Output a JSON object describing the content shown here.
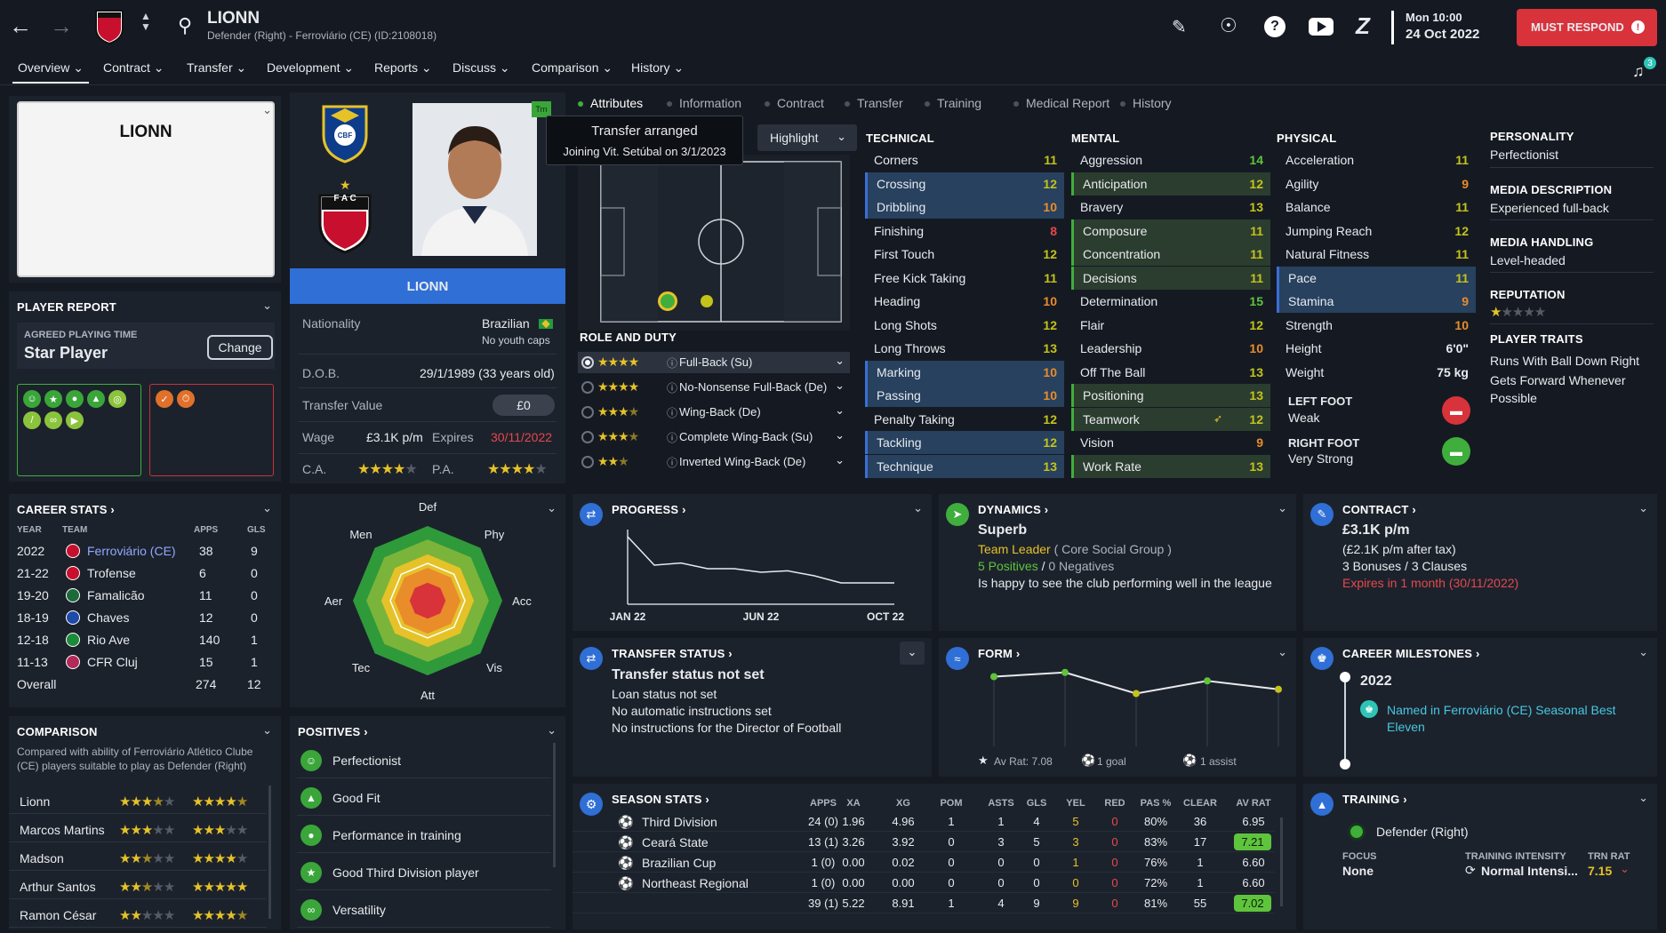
{
  "header": {
    "player_name": "LIONN",
    "subtitle": "Defender (Right) - Ferroviário (CE) (ID:2108018)",
    "date_line1": "Mon 10:00",
    "date_line2": "24 Oct 2022",
    "must_respond": "MUST RESPOND",
    "notification_count": "3"
  },
  "nav": [
    "Overview",
    "Contract",
    "Transfer",
    "Development",
    "Reports",
    "Discuss",
    "Comparison",
    "History"
  ],
  "subtabs": [
    "Attributes",
    "Information",
    "Contract",
    "Transfer",
    "Training",
    "Medical Report",
    "History"
  ],
  "card": {
    "name": "LIONN"
  },
  "profile": {
    "banner_name": "LIONN",
    "nationality_label": "Nationality",
    "nationality": "Brazilian",
    "caps": "No youth caps",
    "dob_label": "D.O.B.",
    "dob": "29/1/1989 (33 years old)",
    "value_label": "Transfer Value",
    "value": "£0",
    "wage_label": "Wage",
    "wage": "£3.1K p/m",
    "expires_label": "Expires",
    "expires": "30/11/2022",
    "ca_label": "C.A.",
    "pa_label": "P.A.",
    "ca_stars": 4,
    "pa_stars": 4,
    "badge_tm": "Trn",
    "cbf_text": "CBF",
    "fac_text": "F A C"
  },
  "tooltip": {
    "title": "Transfer arranged",
    "body": "Joining Vit. Setúbal on 3/1/2023"
  },
  "highlight_label": "Highlight",
  "player_report": {
    "title": "PLAYER REPORT",
    "apt_label": "AGREED PLAYING TIME",
    "apt_value": "Star Player",
    "change_button": "Change"
  },
  "role_duty": {
    "title": "ROLE AND DUTY",
    "roles": [
      {
        "name": "Full-Back (Su)",
        "stars": 4,
        "selected": true
      },
      {
        "name": "No-Nonsense Full-Back (De)",
        "stars": 4,
        "selected": false
      },
      {
        "name": "Wing-Back (De)",
        "stars": 3.5,
        "selected": false
      },
      {
        "name": "Complete Wing-Back (Su)",
        "stars": 3.5,
        "selected": false
      },
      {
        "name": "Inverted Wing-Back (De)",
        "stars": 2.5,
        "selected": false
      }
    ]
  },
  "attributes": {
    "technical_title": "TECHNICAL",
    "mental_title": "MENTAL",
    "physical_title": "PHYSICAL",
    "technical": [
      {
        "name": "Corners",
        "value": "11",
        "hl": false
      },
      {
        "name": "Crossing",
        "value": "12",
        "hl": true
      },
      {
        "name": "Dribbling",
        "value": "10",
        "hl": true
      },
      {
        "name": "Finishing",
        "value": "8",
        "hl": false
      },
      {
        "name": "First Touch",
        "value": "12",
        "hl": false
      },
      {
        "name": "Free Kick Taking",
        "value": "11",
        "hl": false
      },
      {
        "name": "Heading",
        "value": "10",
        "hl": false
      },
      {
        "name": "Long Shots",
        "value": "12",
        "hl": false
      },
      {
        "name": "Long Throws",
        "value": "13",
        "hl": false
      },
      {
        "name": "Marking",
        "value": "10",
        "hl": true
      },
      {
        "name": "Passing",
        "value": "10",
        "hl": true
      },
      {
        "name": "Penalty Taking",
        "value": "12",
        "hl": false
      },
      {
        "name": "Tackling",
        "value": "12",
        "hl": true
      },
      {
        "name": "Technique",
        "value": "13",
        "hl": true
      }
    ],
    "mental": [
      {
        "name": "Aggression",
        "value": "14",
        "hl": false
      },
      {
        "name": "Anticipation",
        "value": "12",
        "hl": true
      },
      {
        "name": "Bravery",
        "value": "13",
        "hl": false
      },
      {
        "name": "Composure",
        "value": "11",
        "hl": true
      },
      {
        "name": "Concentration",
        "value": "11",
        "hl": true
      },
      {
        "name": "Decisions",
        "value": "11",
        "hl": true
      },
      {
        "name": "Determination",
        "value": "15",
        "hl": false
      },
      {
        "name": "Flair",
        "value": "12",
        "hl": false
      },
      {
        "name": "Leadership",
        "value": "10",
        "hl": false
      },
      {
        "name": "Off The Ball",
        "value": "13",
        "hl": false
      },
      {
        "name": "Positioning",
        "value": "13",
        "hl": true
      },
      {
        "name": "Teamwork",
        "value": "12",
        "hl": true
      },
      {
        "name": "Vision",
        "value": "9",
        "hl": false
      },
      {
        "name": "Work Rate",
        "value": "13",
        "hl": true
      }
    ],
    "physical": [
      {
        "name": "Acceleration",
        "value": "11",
        "hl": false
      },
      {
        "name": "Agility",
        "value": "9",
        "hl": false
      },
      {
        "name": "Balance",
        "value": "11",
        "hl": false
      },
      {
        "name": "Jumping Reach",
        "value": "12",
        "hl": false
      },
      {
        "name": "Natural Fitness",
        "value": "11",
        "hl": false
      },
      {
        "name": "Pace",
        "value": "11",
        "hl": true
      },
      {
        "name": "Stamina",
        "value": "9",
        "hl": true
      },
      {
        "name": "Strength",
        "value": "10",
        "hl": false
      },
      {
        "name": "Height",
        "value": "6'0\"",
        "hl": false
      },
      {
        "name": "Weight",
        "value": "75 kg",
        "hl": false
      }
    ],
    "left_foot_label": "LEFT FOOT",
    "left_foot": "Weak",
    "right_foot_label": "RIGHT FOOT",
    "right_foot": "Very Strong"
  },
  "personality": {
    "personality_label": "PERSONALITY",
    "personality": "Perfectionist",
    "media_desc_label": "MEDIA DESCRIPTION",
    "media_desc": "Experienced full-back",
    "media_handling_label": "MEDIA HANDLING",
    "media_handling": "Level-headed",
    "reputation_label": "REPUTATION",
    "reputation_stars": 1,
    "traits_label": "PLAYER TRAITS",
    "traits": [
      "Runs With Ball Down Right",
      "Gets Forward Whenever",
      "Possible"
    ]
  },
  "career": {
    "title": "CAREER STATS",
    "headers": [
      "YEAR",
      "TEAM",
      "APPS",
      "GLS"
    ],
    "rows": [
      {
        "year": "2022",
        "team": "Ferroviário (CE)",
        "apps": "38",
        "gls": "9",
        "link": true
      },
      {
        "year": "21-22",
        "team": "Trofense",
        "apps": "6",
        "gls": "0",
        "link": false
      },
      {
        "year": "19-20",
        "team": "Famalicão",
        "apps": "11",
        "gls": "0",
        "link": false
      },
      {
        "year": "18-19",
        "team": "Chaves",
        "apps": "12",
        "gls": "0",
        "link": false
      },
      {
        "year": "12-18",
        "team": "Rio Ave",
        "apps": "140",
        "gls": "1",
        "link": false
      },
      {
        "year": "11-13",
        "team": "CFR Cluj",
        "apps": "15",
        "gls": "1",
        "link": false
      }
    ],
    "overall_label": "Overall",
    "overall_apps": "274",
    "overall_gls": "12"
  },
  "comparison": {
    "title": "COMPARISON",
    "desc": "Compared with ability of Ferroviário Atlético Clube (CE) players suitable to play as Defender (Right)",
    "rows": [
      {
        "name": "Lionn",
        "ca": 3.5,
        "pa": 4.5
      },
      {
        "name": "Marcos Martins",
        "ca": 3,
        "pa": 3
      },
      {
        "name": "Madson",
        "ca": 2.5,
        "pa": 4
      },
      {
        "name": "Arthur Santos",
        "ca": 2.5,
        "pa": 5
      },
      {
        "name": "Ramon César",
        "ca": 2,
        "pa": 4.5
      }
    ]
  },
  "radar": {
    "labels": [
      "Def",
      "Phy",
      "Acc",
      "Vis",
      "Att",
      "Tec",
      "Aer",
      "Men"
    ]
  },
  "positives": {
    "title": "POSITIVES",
    "items": [
      "Perfectionist",
      "Good Fit",
      "Performance in training",
      "Good Third Division player",
      "Versatility"
    ]
  },
  "progress": {
    "title": "PROGRESS",
    "x_labels": [
      "JAN 22",
      "JUN 22",
      "OCT 22"
    ],
    "series": [
      0.95,
      0.55,
      0.58,
      0.5,
      0.5,
      0.45,
      0.47,
      0.4,
      0.3,
      0.3,
      0.3
    ]
  },
  "dynamics": {
    "title": "DYNAMICS",
    "status": "Superb",
    "role": "Team Leader",
    "group": "( Core Social Group )",
    "positives": "5 Positives",
    "sep": "/",
    "negatives": "0 Negatives",
    "note": "Is happy to see the club performing well in the league"
  },
  "contract": {
    "title": "CONTRACT",
    "wage": "£3.1K p/m",
    "after_tax": "(£2.1K p/m after tax)",
    "clauses": "3 Bonuses / 3 Clauses",
    "expires": "Expires in 1 month (30/11/2022)"
  },
  "transfer_status": {
    "title": "TRANSFER STATUS",
    "status": "Transfer status not set",
    "lines": [
      "Loan status not set",
      "No automatic instructions set",
      "No instructions for the Director of Football"
    ]
  },
  "form": {
    "title": "FORM",
    "points": [
      7.3,
      7.35,
      7.1,
      7.25,
      7.15
    ],
    "av_rat": "Av Rat: 7.08",
    "goals": "1 goal",
    "assists": "1 assist"
  },
  "milestones": {
    "title": "CAREER MILESTONES",
    "year": "2022",
    "item": "Named in Ferroviário (CE) Seasonal Best Eleven"
  },
  "season": {
    "title": "SEASON STATS",
    "headers": [
      "APPS",
      "XA",
      "XG",
      "POM",
      "ASTS",
      "GLS",
      "YEL",
      "RED",
      "PAS %",
      "CLEAR",
      "AV RAT"
    ],
    "rows": [
      {
        "comp": "Third Division",
        "vals": [
          "24 (0)",
          "1.96",
          "4.96",
          "1",
          "1",
          "4",
          "5",
          "0",
          "80%",
          "36",
          "6.95"
        ],
        "hl": false
      },
      {
        "comp": "Ceará State",
        "vals": [
          "13 (1)",
          "3.26",
          "3.92",
          "0",
          "3",
          "5",
          "3",
          "0",
          "83%",
          "17",
          "7.21"
        ],
        "hl": true
      },
      {
        "comp": "Brazilian Cup",
        "vals": [
          "1 (0)",
          "0.00",
          "0.02",
          "0",
          "0",
          "0",
          "1",
          "0",
          "76%",
          "1",
          "6.60"
        ],
        "hl": false
      },
      {
        "comp": "Northeast Regional",
        "vals": [
          "1 (0)",
          "0.00",
          "0.00",
          "0",
          "0",
          "0",
          "0",
          "0",
          "72%",
          "1",
          "6.60"
        ],
        "hl": false
      },
      {
        "comp": "",
        "vals": [
          "39 (1)",
          "5.22",
          "8.91",
          "1",
          "4",
          "9",
          "9",
          "0",
          "81%",
          "55",
          "7.02"
        ],
        "hl": true
      }
    ]
  },
  "training": {
    "title": "TRAINING",
    "position": "Defender (Right)",
    "focus_label": "FOCUS",
    "focus": "None",
    "intensity_label": "TRAINING INTENSITY",
    "intensity": "Normal Intensi...",
    "trn_label": "TRN RAT",
    "trn": "7.15"
  },
  "colors": {
    "accent": "#2f6fd6",
    "red": "#e5484d",
    "green": "#5ec43c",
    "yellow": "#d9c21b"
  }
}
